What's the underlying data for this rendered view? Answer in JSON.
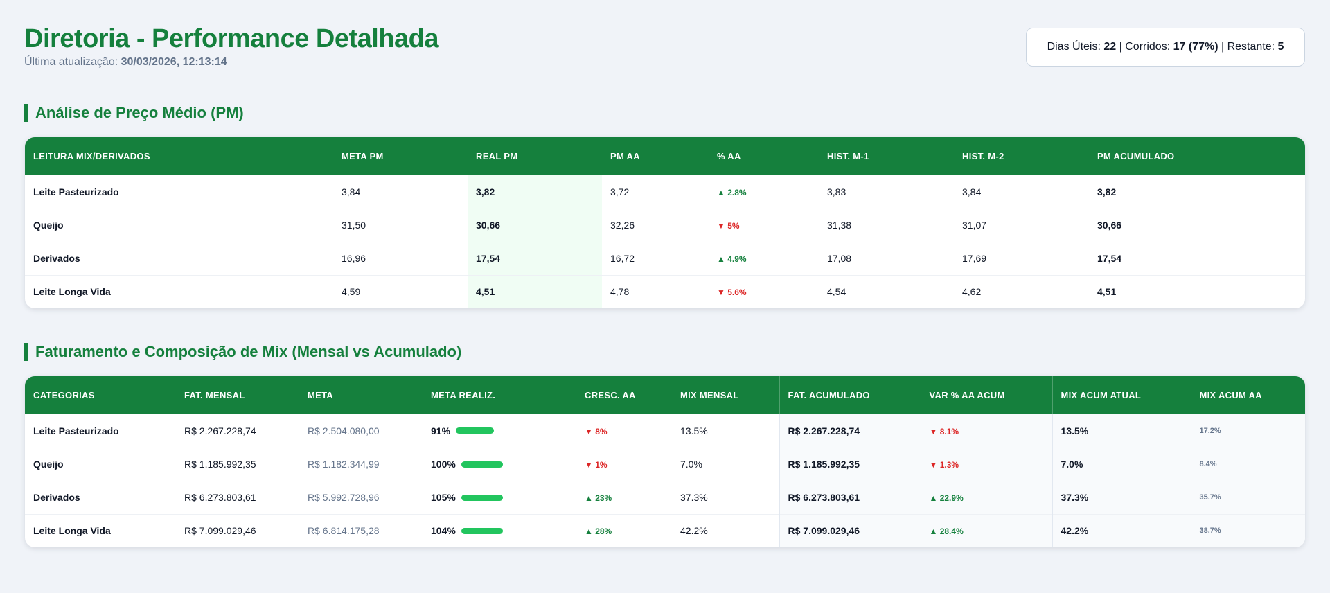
{
  "header": {
    "title": "Diretoria - Performance Detalhada",
    "updated_label": "Última atualização:",
    "updated_value": "30/03/2026, 12:13:14"
  },
  "days": {
    "uteis_label": "Dias Úteis:",
    "uteis_value": "22",
    "corridos_label": "| Corridos:",
    "corridos_value": "17 (77%)",
    "restante_label": "| Restante:",
    "restante_value": "5"
  },
  "pm_section": {
    "title": "Análise de Preço Médio (PM)",
    "columns": [
      "Leitura Mix/Derivados",
      "Meta PM",
      "Real PM",
      "PM AA",
      "% AA",
      "Hist. M-1",
      "Hist. M-2",
      "PM Acumulado"
    ],
    "rows": [
      {
        "name": "Leite Pasteurizado",
        "meta": "3,84",
        "real": "3,82",
        "aa": "3,72",
        "pct": "▲ 2.8%",
        "trend": "up",
        "m1": "3,83",
        "m2": "3,84",
        "acum": "3,82"
      },
      {
        "name": "Queijo",
        "meta": "31,50",
        "real": "30,66",
        "aa": "32,26",
        "pct": "▼ 5%",
        "trend": "down",
        "m1": "31,38",
        "m2": "31,07",
        "acum": "30,66"
      },
      {
        "name": "Derivados",
        "meta": "16,96",
        "real": "17,54",
        "aa": "16,72",
        "pct": "▲ 4.9%",
        "trend": "up",
        "m1": "17,08",
        "m2": "17,69",
        "acum": "17,54"
      },
      {
        "name": "Leite Longa Vida",
        "meta": "4,59",
        "real": "4,51",
        "aa": "4,78",
        "pct": "▼ 5.6%",
        "trend": "down",
        "m1": "4,54",
        "m2": "4,62",
        "acum": "4,51"
      }
    ]
  },
  "fat_section": {
    "title": "Faturamento e Composição de Mix (Mensal vs Acumulado)",
    "columns": [
      "Categorias",
      "Fat. Mensal",
      "Meta",
      "Meta Realiz.",
      "Cresc. AA",
      "Mix Mensal",
      "Fat. Acumulado",
      "Var % AA Acum",
      "Mix Acum Atual",
      "Mix Acum AA"
    ],
    "rows": [
      {
        "name": "Leite Pasteurizado",
        "fat": "R$ 2.267.228,74",
        "meta": "R$ 2.504.080,00",
        "realiz": "91%",
        "realiz_pct": 91,
        "cresc": "▼ 8%",
        "cresc_trend": "down",
        "mix": "13.5%",
        "fat_acum": "R$ 2.267.228,74",
        "var": "▼ 8.1%",
        "var_trend": "down",
        "mix_atual": "13.5%",
        "mix_aa": "17.2%"
      },
      {
        "name": "Queijo",
        "fat": "R$ 1.185.992,35",
        "meta": "R$ 1.182.344,99",
        "realiz": "100%",
        "realiz_pct": 100,
        "cresc": "▼ 1%",
        "cresc_trend": "down",
        "mix": "7.0%",
        "fat_acum": "R$ 1.185.992,35",
        "var": "▼ 1.3%",
        "var_trend": "down",
        "mix_atual": "7.0%",
        "mix_aa": "8.4%"
      },
      {
        "name": "Derivados",
        "fat": "R$ 6.273.803,61",
        "meta": "R$ 5.992.728,96",
        "realiz": "105%",
        "realiz_pct": 105,
        "cresc": "▲ 23%",
        "cresc_trend": "up",
        "mix": "37.3%",
        "fat_acum": "R$ 6.273.803,61",
        "var": "▲ 22.9%",
        "var_trend": "up",
        "mix_atual": "37.3%",
        "mix_aa": "35.7%"
      },
      {
        "name": "Leite Longa Vida",
        "fat": "R$ 7.099.029,46",
        "meta": "R$ 6.814.175,28",
        "realiz": "104%",
        "realiz_pct": 104,
        "cresc": "▲ 28%",
        "cresc_trend": "up",
        "mix": "42.2%",
        "fat_acum": "R$ 7.099.029,46",
        "var": "▲ 28.4%",
        "var_trend": "up",
        "mix_atual": "42.2%",
        "mix_aa": "38.7%"
      }
    ]
  },
  "colors": {
    "brand": "#15803d",
    "up": "#15803d",
    "down": "#dc2626",
    "bar": "#22c55e"
  }
}
